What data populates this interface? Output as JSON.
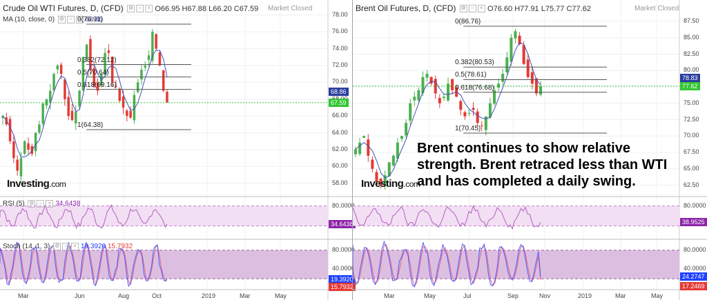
{
  "colors": {
    "up": "#4caf50",
    "down": "#e53935",
    "ma": "#3f51b5",
    "rsi": "#b060c0",
    "stoch_k": "#4f5bff",
    "stoch_d": "#e06080",
    "band": "#f3dff3",
    "stoch_band": "#dcbfe0",
    "current": "#31c531",
    "ma_box": "#2c3ea0"
  },
  "market_status": "Market Closed",
  "annotation": "Brent continues to show relative strength. Brent retraced less than WTI and has completed a daily swing.",
  "logo": {
    "brand": "Investing",
    "suffix": ".com"
  },
  "panels": [
    {
      "title": "Crude Oil WTI Futures, D, (CFD)",
      "ohlc": {
        "o": "O66.95",
        "h": "H67.88",
        "l": "L66.20",
        "c": "C67.59"
      },
      "ma_label": "MA (10, close, 0)",
      "ma_value": "68.86",
      "fib_labels": [
        "0(76.91)",
        "0.382(72.12)",
        "0.5(70.64)",
        "0.618(69.16)",
        "1(64.38)"
      ],
      "price_ticks": [
        "78.00",
        "76.00",
        "74.00",
        "72.00",
        "70.00",
        "68.00",
        "66.00",
        "64.00",
        "62.00",
        "60.00",
        "58.00"
      ],
      "current_price": "67.59",
      "ma_price": "68.86",
      "rsi_label": "RSI (5)",
      "rsi_value": "34.6438",
      "rsi_tick": "80.0000",
      "stoch_label": "Stoch (14, 1, 3)",
      "stoch_k": "19.3920",
      "stoch_d": "15.7932",
      "stoch_ticks": [
        "80.0000",
        "40.0000"
      ],
      "x_labels": [
        "Mar",
        "Jun",
        "Aug",
        "Oct",
        "2019",
        "Mar",
        "May"
      ],
      "chart_data": {
        "type": "line",
        "title": "Crude Oil WTI Futures, D, (CFD)",
        "ylim": [
          57,
          78.8
        ],
        "approx_close": [
          66,
          65,
          63,
          61,
          59.5,
          61,
          63,
          62,
          61.5,
          64,
          65,
          67.5,
          68,
          69,
          71,
          72,
          71,
          68,
          66,
          65.5,
          66.5,
          69,
          73,
          74.5,
          71.5,
          69.5,
          69,
          71,
          73.5,
          73.5,
          70,
          69.5,
          67.8,
          67,
          66,
          65.8,
          68.5,
          70,
          71.5,
          72,
          73.2,
          76,
          74,
          72,
          69,
          67.6
        ],
        "fib_levels": [
          76.91,
          72.12,
          70.64,
          69.16,
          64.38
        ],
        "rsi_last": 34.6438,
        "stoch_k_last": 19.392,
        "stoch_d_last": 15.7932
      }
    },
    {
      "title": "Brent Oil Futures, D, (CFD)",
      "ohlc": {
        "o": "O76.60",
        "h": "H77.91",
        "l": "L75.77",
        "c": "C77.62"
      },
      "ma_label": "",
      "ma_value": "",
      "fib_labels": [
        "0(86.76)",
        "0.382(80.53)",
        "0.5(78.61)",
        "0.618(76.68)",
        "1(70.45)"
      ],
      "price_ticks": [
        "87.50",
        "85.00",
        "82.50",
        "80.00",
        "77.50",
        "75.00",
        "72.50",
        "70.00",
        "67.50",
        "65.00",
        "62.50"
      ],
      "current_price": "77.62",
      "ma_price": "78.83",
      "rsi_label": "",
      "rsi_value": "38.9525",
      "rsi_tick": "80.0000",
      "stoch_label": "",
      "stoch_k": "24.2747",
      "stoch_d": "17.2469",
      "stoch_ticks": [
        "80.0000",
        "40.0000"
      ],
      "x_labels": [
        "Mar",
        "May",
        "Jul",
        "Sep",
        "Nov",
        "2019",
        "Mar",
        "May"
      ],
      "chart_data": {
        "type": "line",
        "title": "Brent Oil Futures, D, (CFD)",
        "ylim": [
          61.5,
          89.5
        ],
        "approx_close": [
          68,
          69,
          70,
          67,
          65,
          63,
          62.5,
          64,
          66,
          67,
          69,
          70,
          72,
          75,
          76,
          77,
          79,
          79.5,
          78,
          76.5,
          75,
          76,
          78,
          77,
          76,
          74,
          73,
          73.5,
          74,
          72,
          71.5,
          73,
          75,
          77,
          78,
          79.5,
          82,
          85,
          86,
          84,
          81,
          79,
          78,
          76.5,
          77.6
        ],
        "fib_levels": [
          86.76,
          80.53,
          78.61,
          76.68,
          70.45
        ],
        "rsi_last": 38.9525,
        "stoch_k_last": 24.2747,
        "stoch_d_last": 17.2469
      }
    }
  ]
}
